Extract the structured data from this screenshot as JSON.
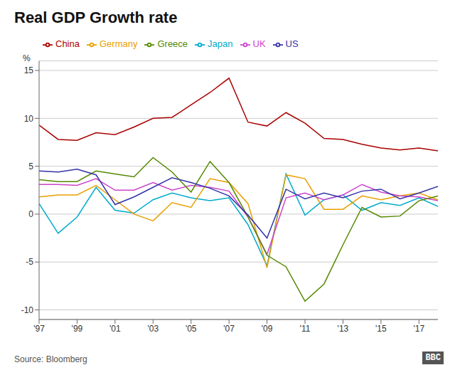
{
  "chart_data": {
    "type": "line",
    "title": "Real GDP Growth rate",
    "ylabel": "%",
    "annotations": [
      "Source: Bloomberg",
      "BBC"
    ],
    "x": [
      1997,
      1998,
      1999,
      2000,
      2001,
      2002,
      2003,
      2004,
      2005,
      2006,
      2007,
      2008,
      2009,
      2010,
      2011,
      2012,
      2013,
      2014,
      2015,
      2016,
      2017,
      2018
    ],
    "xlim": [
      1997,
      2018
    ],
    "xticks": [
      {
        "value": 1997,
        "label": "'97"
      },
      {
        "value": 1999,
        "label": "'99"
      },
      {
        "value": 2001,
        "label": "'01"
      },
      {
        "value": 2003,
        "label": "'03"
      },
      {
        "value": 2005,
        "label": "'05"
      },
      {
        "value": 2007,
        "label": "'07"
      },
      {
        "value": 2009,
        "label": "'09"
      },
      {
        "value": 2011,
        "label": "'11"
      },
      {
        "value": 2013,
        "label": "'13"
      },
      {
        "value": 2015,
        "label": "'15"
      },
      {
        "value": 2017,
        "label": "'17"
      }
    ],
    "ylim": [
      -11,
      16
    ],
    "yticks": [
      -10,
      -5,
      0,
      5,
      10,
      15
    ],
    "grid": true,
    "legend": "upper left",
    "series": [
      {
        "name": "Japan",
        "color": "#00aacc",
        "values": [
          1.1,
          -2.0,
          -0.3,
          2.8,
          0.4,
          0.1,
          1.5,
          2.2,
          1.7,
          1.4,
          1.7,
          -1.1,
          -5.4,
          4.2,
          -0.1,
          1.5,
          2.0,
          0.4,
          1.2,
          0.9,
          1.7,
          0.8
        ]
      },
      {
        "name": "Germany",
        "color": "#e8a000",
        "values": [
          1.8,
          2.0,
          2.0,
          3.0,
          1.5,
          0.0,
          -0.7,
          1.2,
          0.7,
          3.7,
          3.3,
          1.1,
          -5.6,
          4.1,
          3.7,
          0.5,
          0.5,
          1.9,
          1.5,
          1.9,
          2.2,
          1.5
        ]
      },
      {
        "name": "China",
        "color": "#aa0000",
        "values": [
          9.3,
          7.8,
          7.7,
          8.5,
          8.3,
          9.1,
          10.0,
          10.1,
          11.4,
          12.7,
          14.2,
          9.6,
          9.2,
          10.6,
          9.5,
          7.9,
          7.8,
          7.3,
          6.9,
          6.7,
          6.9,
          6.6
        ]
      },
      {
        "name": "UK",
        "color": "#cc44cc",
        "values": [
          3.1,
          3.1,
          3.0,
          3.7,
          2.5,
          2.5,
          3.3,
          2.5,
          3.0,
          2.8,
          2.4,
          -0.3,
          -4.2,
          1.7,
          2.2,
          1.5,
          2.0,
          3.1,
          2.3,
          1.9,
          1.8,
          1.4
        ]
      },
      {
        "name": "Greece",
        "color": "#558800",
        "values": [
          3.6,
          3.4,
          3.4,
          4.5,
          4.2,
          3.9,
          5.9,
          4.4,
          2.3,
          5.5,
          3.3,
          -0.3,
          -4.3,
          -5.5,
          -9.1,
          -7.3,
          -3.2,
          0.7,
          -0.3,
          -0.2,
          1.4,
          1.9
        ]
      },
      {
        "name": "US",
        "color": "#3333aa",
        "values": [
          4.5,
          4.4,
          4.7,
          4.1,
          1.0,
          1.8,
          2.8,
          3.8,
          3.3,
          2.7,
          1.9,
          -0.1,
          -2.5,
          2.6,
          1.6,
          2.2,
          1.7,
          2.4,
          2.6,
          1.6,
          2.2,
          2.9
        ]
      }
    ]
  }
}
